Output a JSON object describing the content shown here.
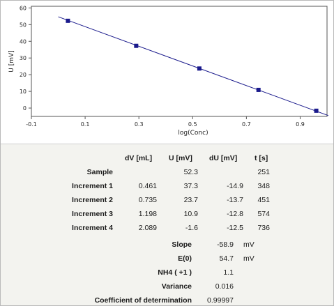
{
  "chart_data": {
    "type": "scatter",
    "xlabel": "log(Conc)",
    "ylabel": "U [mV]",
    "xlim": [
      -0.1,
      1.0
    ],
    "ylim": [
      -5,
      61
    ],
    "xticks": [
      "-0.1",
      "0.1",
      "0.3",
      "0.5",
      "0.7",
      "0.9"
    ],
    "xtick_values": [
      -0.1,
      0.1,
      0.3,
      0.5,
      0.7,
      0.9
    ],
    "yticks": [
      "0",
      "10",
      "20",
      "30",
      "40",
      "50",
      "60"
    ],
    "ytick_values": [
      0,
      10,
      20,
      30,
      40,
      50,
      60
    ],
    "series": [
      {
        "points": [
          {
            "x": 0.036,
            "y": 52.3
          },
          {
            "x": 0.29,
            "y": 37.3
          },
          {
            "x": 0.525,
            "y": 23.7
          },
          {
            "x": 0.745,
            "y": 10.9
          },
          {
            "x": 0.96,
            "y": -1.6
          }
        ],
        "color": "#1a1a8c"
      }
    ],
    "fit_line": {
      "x": [
        0.0,
        1.005
      ],
      "y": [
        54.7,
        -4.5
      ],
      "color": "#1a1a8c"
    },
    "grid": false
  },
  "table": {
    "headers": [
      "dV [mL]",
      "U [mV]",
      "dU [mV]",
      "t [s]"
    ],
    "rows": [
      {
        "label": "Sample",
        "dv": "",
        "u": "52.3",
        "du": "",
        "t": "251"
      },
      {
        "label": "Increment 1",
        "dv": "0.461",
        "u": "37.3",
        "du": "-14.9",
        "t": "348"
      },
      {
        "label": "Increment 2",
        "dv": "0.735",
        "u": "23.7",
        "du": "-13.7",
        "t": "451"
      },
      {
        "label": "Increment 3",
        "dv": "1.198",
        "u": "10.9",
        "du": "-12.8",
        "t": "574"
      },
      {
        "label": "Increment 4",
        "dv": "2.089",
        "u": "-1.6",
        "du": "-12.5",
        "t": "736"
      }
    ]
  },
  "results": [
    {
      "label": "Slope",
      "value": "-58.9",
      "unit": "mV"
    },
    {
      "label": "E(0)",
      "value": "54.7",
      "unit": "mV"
    },
    {
      "label": "NH4 ( +1 )",
      "value": "1.1",
      "unit": ""
    },
    {
      "label": "Variance",
      "value": "0.016",
      "unit": ""
    },
    {
      "label": "Coefficient of determination",
      "value": "0.99997",
      "unit": ""
    }
  ]
}
